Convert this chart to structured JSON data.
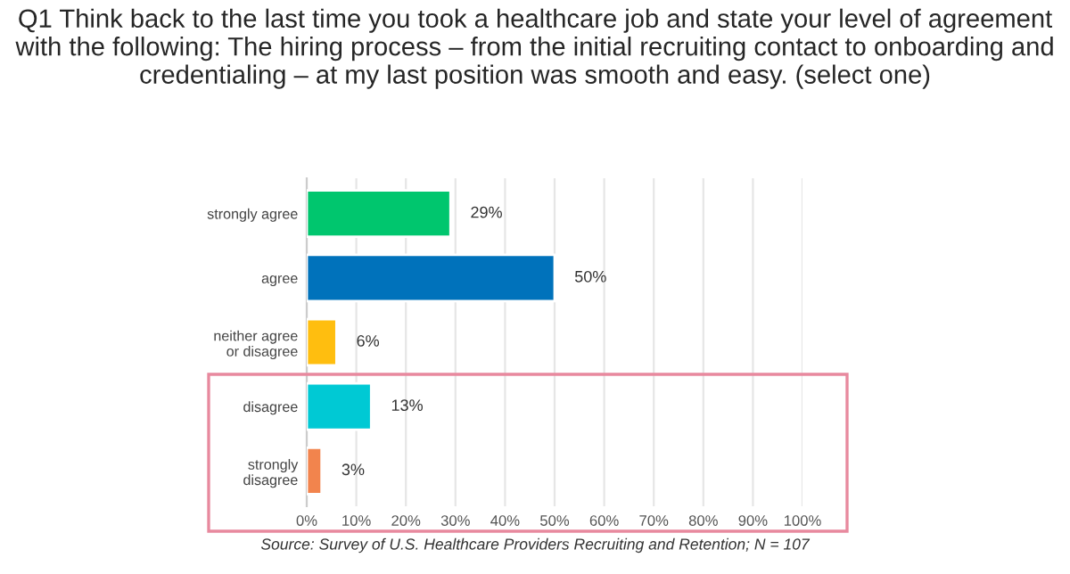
{
  "chart_data": {
    "type": "bar",
    "orientation": "horizontal",
    "title": "Q1 Think back to the last time you took a healthcare job and state your level of agreement with the following: The hiring process – from the initial recruiting contact to onboarding and credentialing – at my last position was smooth and easy. (select one)",
    "categories": [
      "strongly agree",
      "agree",
      "neither agree\nor disagree",
      "disagree",
      "strongly\ndisagree"
    ],
    "values": [
      29,
      50,
      6,
      13,
      3
    ],
    "colors": [
      "#00c66e",
      "#0072bb",
      "#ffbe0f",
      "#00c9d4",
      "#f2844d"
    ],
    "value_labels": [
      "29%",
      "50%",
      "6%",
      "13%",
      "3%"
    ],
    "xlim": [
      0,
      100
    ],
    "xticks": [
      {
        "value": 0,
        "label": "0%"
      },
      {
        "value": 10,
        "label": "10%"
      },
      {
        "value": 20,
        "label": "20%"
      },
      {
        "value": 30,
        "label": "30%"
      },
      {
        "value": 40,
        "label": "40%"
      },
      {
        "value": 50,
        "label": "50%"
      },
      {
        "value": 60,
        "label": "60%"
      },
      {
        "value": 70,
        "label": "70%"
      },
      {
        "value": 80,
        "label": "80%"
      },
      {
        "value": 90,
        "label": "90%"
      },
      {
        "value": 100,
        "label": "100%"
      }
    ],
    "grid": "x",
    "annotations": [
      "Source: Survey of U.S. Healthcare Providers Recruiting and Retention; N = 107"
    ]
  }
}
